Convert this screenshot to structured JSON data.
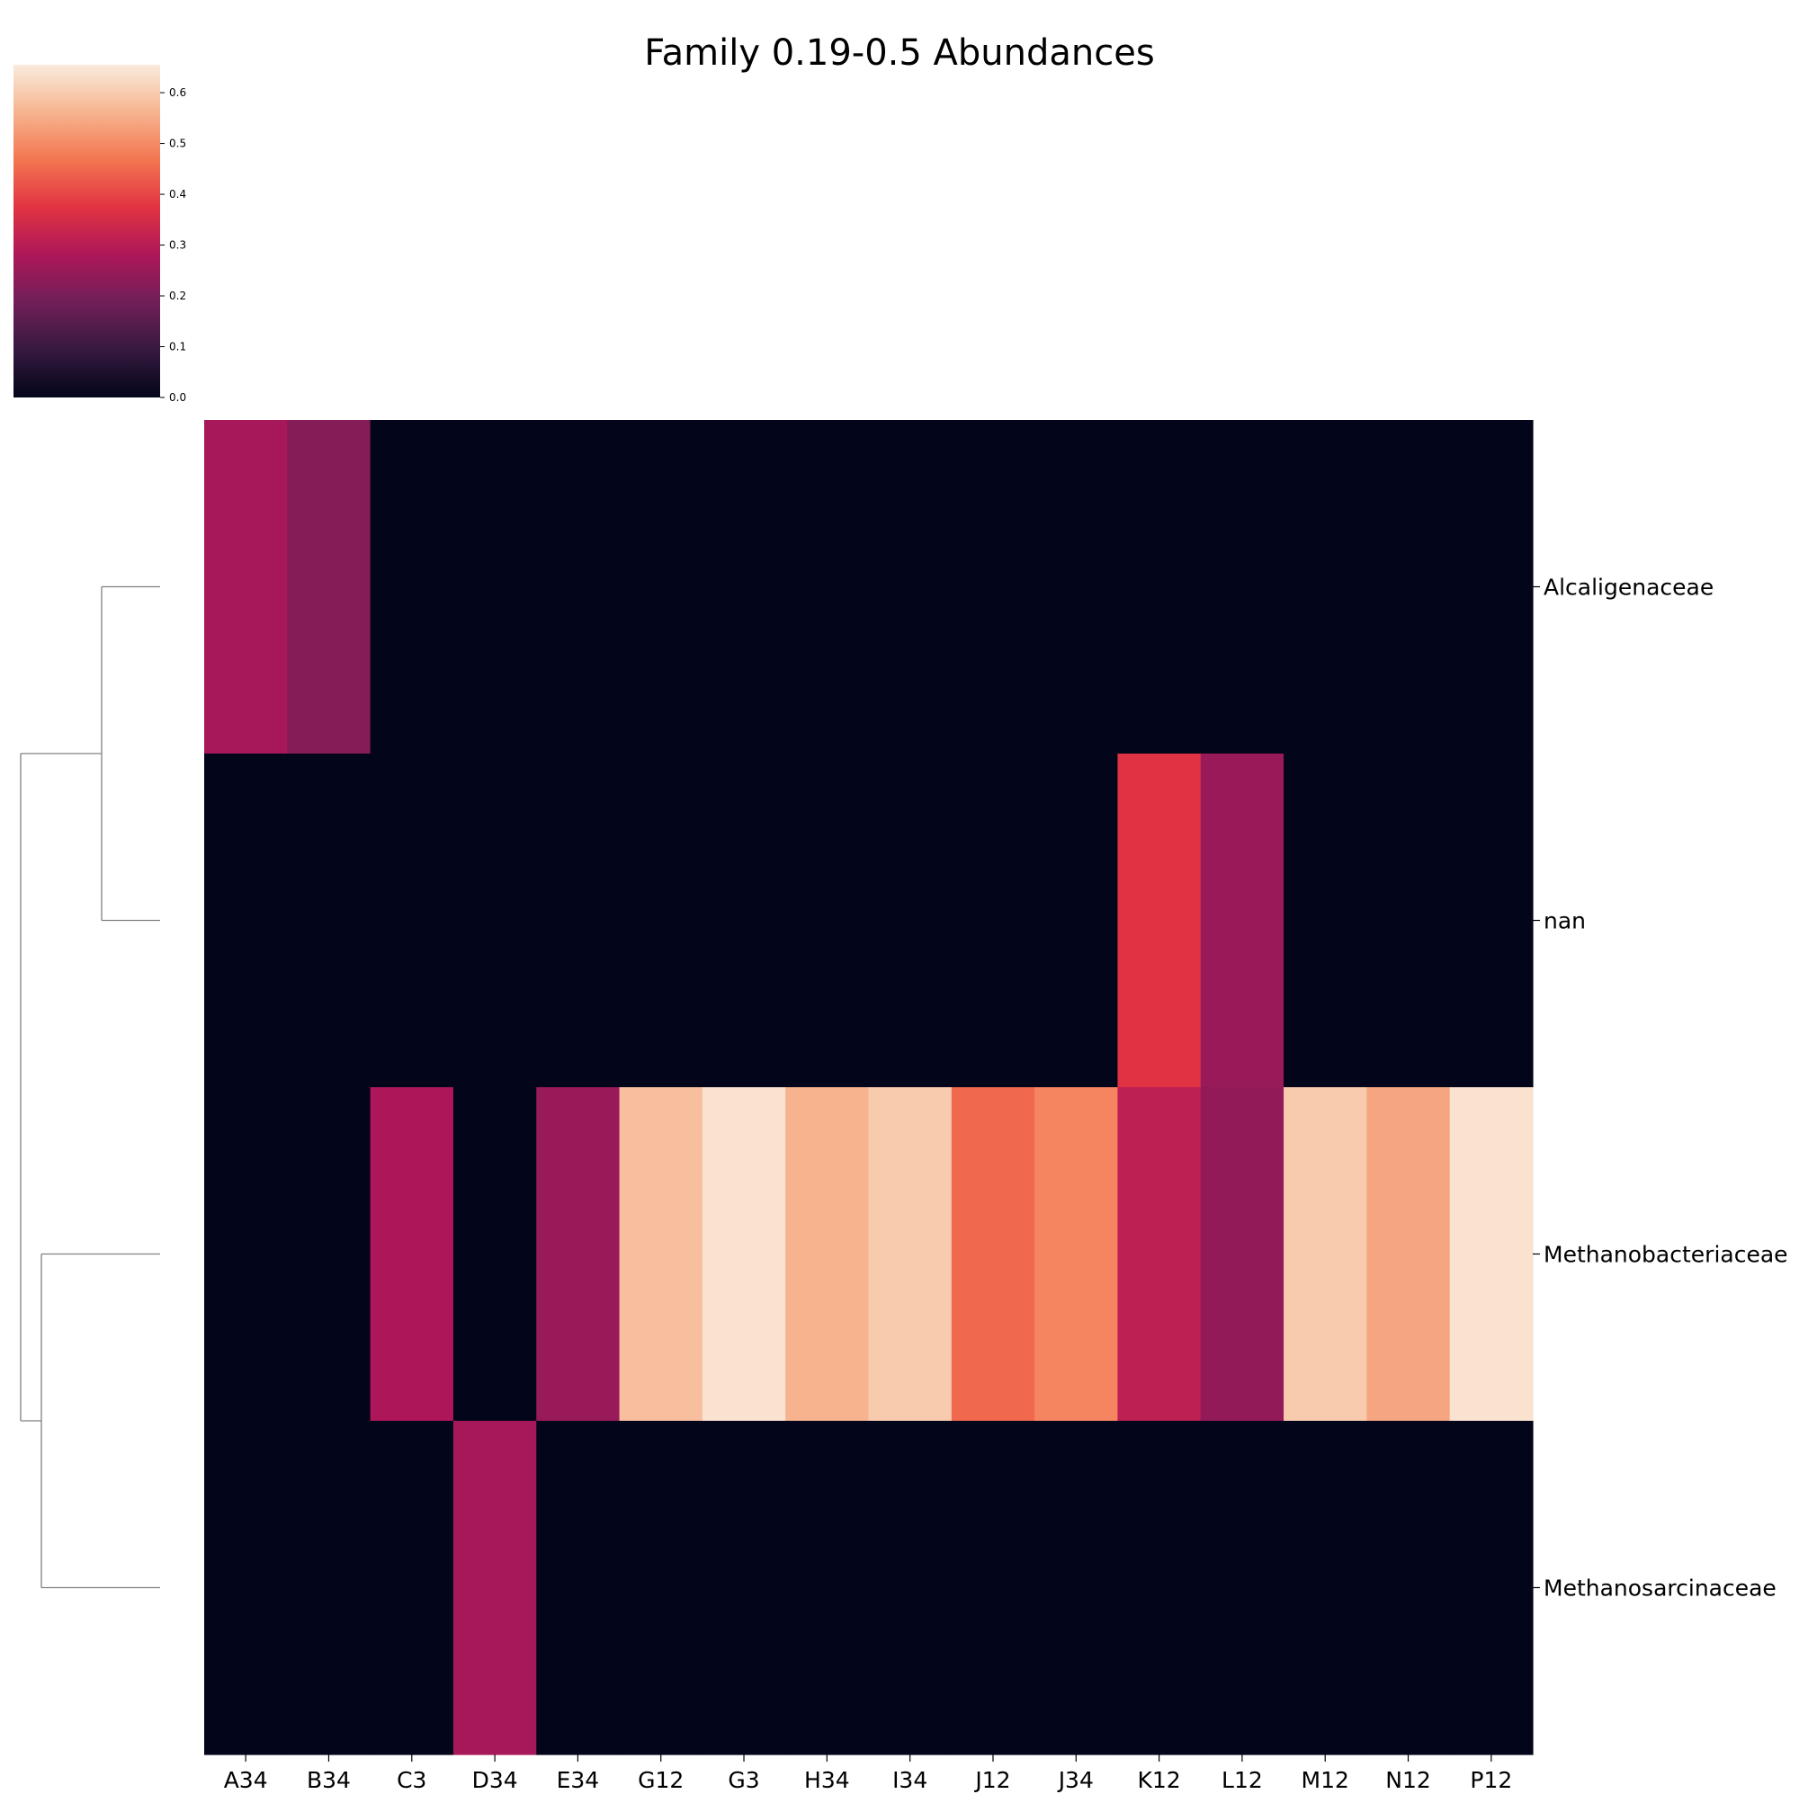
{
  "chart_data": {
    "type": "heatmap",
    "title": "Family 0.19-0.5 Abundances",
    "x_categories": [
      "A34",
      "B34",
      "C3",
      "D34",
      "E34",
      "G12",
      "G3",
      "H34",
      "I34",
      "J12",
      "J34",
      "K12",
      "L12",
      "M12",
      "N12",
      "P12"
    ],
    "y_categories": [
      "Alcaligenaceae",
      "nan",
      "Methanobacteriaceae",
      "Methanosarcinaceae"
    ],
    "values": [
      [
        0.27,
        0.22,
        0,
        0,
        0,
        0,
        0,
        0,
        0,
        0,
        0,
        0,
        0,
        0,
        0,
        0
      ],
      [
        0,
        0,
        0,
        0,
        0,
        0,
        0,
        0,
        0,
        0,
        0,
        0.37,
        0.25,
        0,
        0,
        0
      ],
      [
        0,
        0,
        0.28,
        0,
        0.25,
        0.58,
        0.64,
        0.56,
        0.6,
        0.45,
        0.49,
        0.31,
        0.24,
        0.6,
        0.54,
        0.64
      ],
      [
        0,
        0,
        0,
        0.27,
        0,
        0,
        0,
        0,
        0,
        0,
        0,
        0,
        0,
        0,
        0,
        0
      ]
    ],
    "colorbar": {
      "colormap": "rocket",
      "range": [
        0,
        0.655
      ],
      "ticks": [
        "0.0",
        "0.1",
        "0.2",
        "0.3",
        "0.4",
        "0.5",
        "0.6"
      ],
      "stops": [
        "#03051a",
        "#36193e",
        "#701f57",
        "#ad1759",
        "#e13342",
        "#f37651",
        "#f6b48f",
        "#faebdd"
      ]
    },
    "row_dendrogram": {
      "clusters": [
        [
          "Alcaligenaceae",
          "nan"
        ],
        [
          "Methanobacteriaceae",
          "Methanosarcinaceae"
        ]
      ],
      "line_color": "#808080"
    },
    "legend": "colorbar top-left",
    "grid": false
  }
}
